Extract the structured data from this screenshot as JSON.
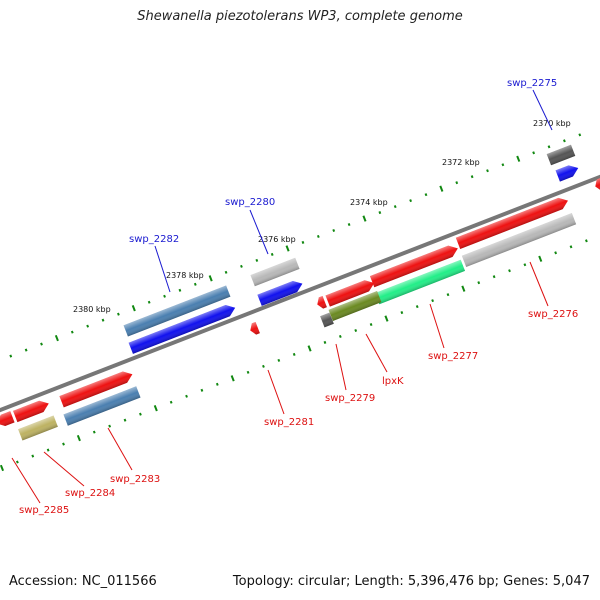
{
  "title": "Shewanella piezotolerans WP3, complete genome",
  "footer": {
    "accession": "Accession: NC_011566",
    "summary": "Topology: circular; Length: 5,396,476 bp; Genes: 5,047"
  },
  "colors": {
    "backbone": "#777777",
    "tick": "#118811",
    "red_gene": "#ee1111",
    "blue_gene": "#1111ee",
    "steel_gene": "#4a7fb0",
    "grey_gene": "#b8b8b8",
    "dark_grey_gene": "#555555",
    "olive_gene": "#6b8a22",
    "khaki_gene": "#bdb262",
    "aqua_gene": "#22ee88",
    "blue_label": "#1a1ad0",
    "red_label": "#dd1111"
  },
  "scale_labels": [
    "2370 kbp",
    "2372 kbp",
    "2374 kbp",
    "2376 kbp",
    "2378 kbp",
    "2380 kbp"
  ],
  "gene_labels": [
    "swp_2275",
    "swp_2276",
    "swp_2277",
    "lpxK",
    "swp_2279",
    "swp_2280",
    "swp_2281",
    "swp_2282",
    "swp_2283",
    "swp_2284",
    "swp_2285"
  ]
}
